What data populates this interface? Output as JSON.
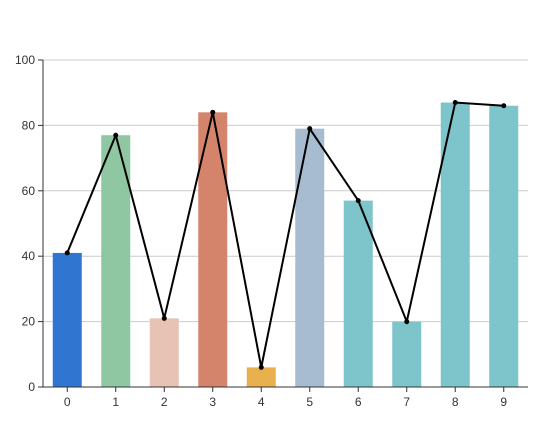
{
  "chart_data": {
    "type": "bar",
    "categories": [
      "0",
      "1",
      "2",
      "3",
      "4",
      "5",
      "6",
      "7",
      "8",
      "9"
    ],
    "values": [
      41,
      77,
      21,
      84,
      6,
      79,
      57,
      20,
      87,
      86
    ],
    "bar_colors": [
      "#3076d1",
      "#8fc7a3",
      "#e6c3b4",
      "#d4846a",
      "#e9b04e",
      "#a7bcd1",
      "#7ec4cb",
      "#7ec4cb",
      "#7ec4cb",
      "#7ec4cb"
    ],
    "overlay_line": {
      "type": "line",
      "values": [
        41,
        77,
        21,
        84,
        6,
        79,
        57,
        20,
        87,
        86
      ],
      "color": "#000000"
    },
    "title": "",
    "xlabel": "",
    "ylabel": "",
    "ylim": [
      0,
      100
    ],
    "yticks": [
      "0",
      "20",
      "40",
      "60",
      "80",
      "100"
    ],
    "grid": true,
    "legend": "none",
    "colors": {
      "grid": "#cccccc",
      "axis": "#333333",
      "text": "#333333"
    }
  }
}
